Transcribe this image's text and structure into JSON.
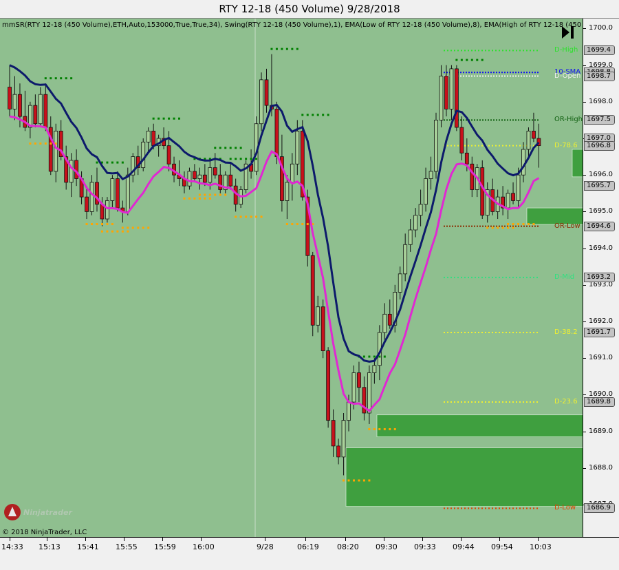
{
  "window": {
    "title": "RTY 12-18 (450 Volume)  9/28/2018"
  },
  "indicators_text": "mmSR(RTY 12-18 (450 Volume),ETH,Auto,153000,True,True,34), Swing(RTY 12-18 (450 Volume),1), EMA(Low of RTY 12-18 (450 Volume),8), EMA(High of RTY 12-18 (450",
  "copyright": "© 2018 NinjaTrader, LLC",
  "logo_text": "Ninjatrader",
  "icons": {
    "scroll_end": "scroll-to-end-icon",
    "logo": "ninjatrader-logo-icon"
  },
  "colors": {
    "background": "#8fbf8f",
    "up_candle": "#a9d19a",
    "down_candle": "#c8111b",
    "ema_high": "#0d1a6b",
    "ema_low": "#e028d2",
    "swing_high": "#008000",
    "swing_low": "#ffa500",
    "zone": "#3f9f3f"
  },
  "y_axis": {
    "ticks": [
      "1700.0",
      "1699.0",
      "1698.0",
      "1697.0",
      "1696.0",
      "1695.0",
      "1694.0",
      "1693.0",
      "1692.0",
      "1691.0",
      "1690.0",
      "1689.0",
      "1688.0",
      "1687.0"
    ],
    "labels": [
      "1699.4",
      "1698.8",
      "1698.7",
      "1697.5",
      "1697.0",
      "1696.8",
      "1695.7",
      "1694.6",
      "1693.2",
      "1691.7",
      "1689.8",
      "1686.9"
    ]
  },
  "x_axis": {
    "labels": [
      "14:33",
      "15:13",
      "15:41",
      "15:55",
      "15:59",
      "16:00",
      "9/28",
      "06:19",
      "08:20",
      "09:30",
      "09:33",
      "09:44",
      "09:54",
      "10:03"
    ]
  },
  "levels": [
    {
      "name": "D-High",
      "price": 1699.4,
      "color": "#2ee02e"
    },
    {
      "name": "10-SMA",
      "price": 1698.8,
      "color": "#1010f0"
    },
    {
      "name": "D-Open",
      "price": 1698.7,
      "color": "#f0f0f0"
    },
    {
      "name": "OR-High",
      "price": 1697.5,
      "color": "#106010"
    },
    {
      "name": "D-78.6",
      "price": 1696.8,
      "color": "#f0f030"
    },
    {
      "name": "OR-Low",
      "price": 1694.6,
      "color": "#8b2a00"
    },
    {
      "name": "D-Mid",
      "price": 1693.2,
      "color": "#30e080"
    },
    {
      "name": "D-38.2",
      "price": 1691.7,
      "color": "#f0f030"
    },
    {
      "name": "D-23.6",
      "price": 1689.8,
      "color": "#f0f030"
    },
    {
      "name": "D-Low",
      "price": 1686.9,
      "color": "#e04000"
    }
  ],
  "chart_data": {
    "type": "candlestick",
    "instrument": "RTY 12-18",
    "bar_type": "450 Volume",
    "ylim": [
      1686.2,
      1700.3
    ],
    "candles": [
      [
        1698.4,
        1699.0,
        1697.6,
        1697.8
      ],
      [
        1697.8,
        1698.7,
        1697.5,
        1698.2
      ],
      [
        1698.2,
        1698.5,
        1697.3,
        1697.6
      ],
      [
        1697.6,
        1698.3,
        1697.2,
        1697.3
      ],
      [
        1697.3,
        1698.0,
        1697.0,
        1697.9
      ],
      [
        1697.9,
        1698.2,
        1697.3,
        1697.4
      ],
      [
        1697.4,
        1698.4,
        1697.3,
        1698.2
      ],
      [
        1698.2,
        1698.5,
        1697.2,
        1697.3
      ],
      [
        1697.3,
        1697.6,
        1696.0,
        1696.1
      ],
      [
        1696.1,
        1697.4,
        1695.8,
        1697.2
      ],
      [
        1697.2,
        1697.5,
        1696.4,
        1696.5
      ],
      [
        1696.5,
        1696.8,
        1695.6,
        1695.8
      ],
      [
        1695.8,
        1696.6,
        1695.4,
        1696.4
      ],
      [
        1696.4,
        1696.7,
        1695.7,
        1695.9
      ],
      [
        1695.9,
        1696.1,
        1695.2,
        1695.4
      ],
      [
        1695.4,
        1695.7,
        1694.8,
        1695.0
      ],
      [
        1695.0,
        1696.0,
        1694.9,
        1695.8
      ],
      [
        1695.8,
        1696.2,
        1695.0,
        1695.2
      ],
      [
        1695.2,
        1695.4,
        1694.6,
        1694.8
      ],
      [
        1694.8,
        1695.4,
        1694.7,
        1695.3
      ],
      [
        1695.3,
        1696.0,
        1695.1,
        1695.9
      ],
      [
        1695.9,
        1696.1,
        1695.0,
        1695.1
      ],
      [
        1695.1,
        1695.3,
        1694.7,
        1695.0
      ],
      [
        1695.0,
        1696.2,
        1694.9,
        1696.0
      ],
      [
        1696.0,
        1696.6,
        1695.8,
        1696.5
      ],
      [
        1696.5,
        1696.8,
        1696.0,
        1696.2
      ],
      [
        1696.2,
        1697.0,
        1696.1,
        1696.9
      ],
      [
        1696.9,
        1697.3,
        1696.6,
        1697.2
      ],
      [
        1697.2,
        1697.4,
        1696.7,
        1696.8
      ],
      [
        1696.8,
        1697.1,
        1696.5,
        1697.0
      ],
      [
        1697.0,
        1697.3,
        1696.7,
        1696.8
      ],
      [
        1696.8,
        1697.2,
        1696.1,
        1696.3
      ],
      [
        1696.3,
        1696.5,
        1695.8,
        1696.0
      ],
      [
        1696.0,
        1696.4,
        1695.7,
        1695.9
      ],
      [
        1695.9,
        1696.1,
        1695.5,
        1695.7
      ],
      [
        1695.7,
        1696.2,
        1695.6,
        1696.1
      ],
      [
        1696.1,
        1696.3,
        1695.8,
        1695.9
      ],
      [
        1695.9,
        1696.2,
        1695.6,
        1696.0
      ],
      [
        1696.0,
        1696.3,
        1695.7,
        1695.8
      ],
      [
        1695.8,
        1696.4,
        1695.6,
        1696.2
      ],
      [
        1696.2,
        1696.6,
        1695.9,
        1696.0
      ],
      [
        1696.0,
        1696.3,
        1695.5,
        1695.6
      ],
      [
        1695.6,
        1696.1,
        1695.5,
        1696.0
      ],
      [
        1696.0,
        1696.3,
        1695.6,
        1695.7
      ],
      [
        1695.7,
        1695.9,
        1695.0,
        1695.2
      ],
      [
        1695.2,
        1695.7,
        1695.1,
        1695.6
      ],
      [
        1695.6,
        1696.4,
        1695.5,
        1696.3
      ],
      [
        1696.3,
        1696.7,
        1695.9,
        1696.1
      ],
      [
        1696.1,
        1697.6,
        1696.0,
        1697.4
      ],
      [
        1697.4,
        1698.8,
        1697.2,
        1698.6
      ],
      [
        1698.6,
        1698.9,
        1697.7,
        1697.9
      ],
      [
        1697.9,
        1699.3,
        1697.6,
        1697.8
      ],
      [
        1697.8,
        1698.0,
        1696.3,
        1696.5
      ],
      [
        1696.5,
        1697.1,
        1695.0,
        1695.3
      ],
      [
        1695.3,
        1696.0,
        1694.8,
        1695.8
      ],
      [
        1695.8,
        1696.6,
        1695.3,
        1696.3
      ],
      [
        1696.3,
        1697.5,
        1696.0,
        1697.2
      ],
      [
        1697.2,
        1697.5,
        1695.3,
        1695.4
      ],
      [
        1695.4,
        1695.6,
        1693.5,
        1693.8
      ],
      [
        1693.8,
        1693.9,
        1691.6,
        1691.9
      ],
      [
        1691.9,
        1692.7,
        1691.7,
        1692.4
      ],
      [
        1692.4,
        1692.6,
        1691.0,
        1691.2
      ],
      [
        1691.2,
        1691.3,
        1689.1,
        1689.3
      ],
      [
        1689.3,
        1689.6,
        1688.3,
        1688.6
      ],
      [
        1688.6,
        1688.8,
        1688.1,
        1688.3
      ],
      [
        1688.3,
        1689.5,
        1687.8,
        1689.3
      ],
      [
        1689.3,
        1690.0,
        1689.0,
        1689.8
      ],
      [
        1689.8,
        1690.8,
        1689.6,
        1690.6
      ],
      [
        1690.6,
        1690.9,
        1689.8,
        1690.2
      ],
      [
        1690.2,
        1690.5,
        1689.3,
        1689.5
      ],
      [
        1689.5,
        1690.8,
        1689.2,
        1690.6
      ],
      [
        1690.6,
        1691.0,
        1690.3,
        1690.8
      ],
      [
        1690.8,
        1691.9,
        1690.4,
        1691.7
      ],
      [
        1691.7,
        1692.5,
        1691.5,
        1692.2
      ],
      [
        1692.2,
        1692.6,
        1691.8,
        1691.9
      ],
      [
        1691.9,
        1693.0,
        1691.7,
        1692.8
      ],
      [
        1692.8,
        1693.5,
        1692.6,
        1693.3
      ],
      [
        1693.3,
        1694.4,
        1693.1,
        1694.1
      ],
      [
        1694.1,
        1694.8,
        1693.9,
        1694.5
      ],
      [
        1694.5,
        1695.1,
        1694.3,
        1694.9
      ],
      [
        1694.9,
        1695.6,
        1694.6,
        1695.2
      ],
      [
        1695.2,
        1696.2,
        1695.0,
        1695.9
      ],
      [
        1695.9,
        1696.5,
        1695.6,
        1696.1
      ],
      [
        1696.1,
        1697.7,
        1695.9,
        1697.5
      ],
      [
        1697.5,
        1699.0,
        1697.3,
        1698.7
      ],
      [
        1698.7,
        1699.0,
        1697.6,
        1697.8
      ],
      [
        1697.8,
        1699.0,
        1697.5,
        1698.9
      ],
      [
        1698.9,
        1699.0,
        1697.2,
        1697.3
      ],
      [
        1697.3,
        1697.6,
        1696.4,
        1696.6
      ],
      [
        1696.6,
        1697.0,
        1696.1,
        1696.3
      ],
      [
        1696.3,
        1696.5,
        1695.4,
        1695.6
      ],
      [
        1695.6,
        1696.3,
        1695.4,
        1696.2
      ],
      [
        1696.2,
        1696.4,
        1694.8,
        1694.9
      ],
      [
        1694.9,
        1695.8,
        1694.7,
        1695.6
      ],
      [
        1695.6,
        1695.9,
        1694.9,
        1695.0
      ],
      [
        1695.0,
        1695.6,
        1694.8,
        1695.4
      ],
      [
        1695.4,
        1695.7,
        1694.9,
        1695.1
      ],
      [
        1695.1,
        1695.6,
        1694.8,
        1695.5
      ],
      [
        1695.5,
        1695.8,
        1695.2,
        1695.3
      ],
      [
        1695.3,
        1696.2,
        1695.1,
        1696.0
      ],
      [
        1696.0,
        1696.9,
        1695.8,
        1696.7
      ],
      [
        1696.7,
        1697.3,
        1696.5,
        1697.2
      ],
      [
        1697.2,
        1697.7,
        1696.9,
        1697.0
      ],
      [
        1697.0,
        1697.4,
        1696.2,
        1696.8
      ]
    ]
  }
}
